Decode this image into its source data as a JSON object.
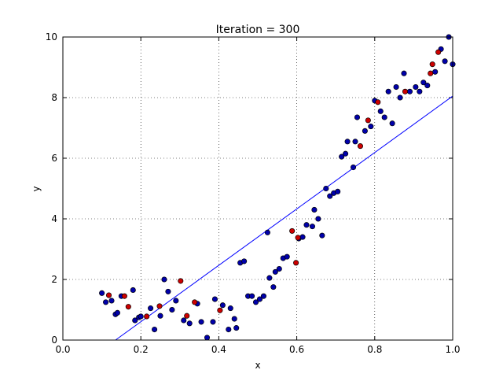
{
  "chart_data": {
    "type": "scatter",
    "title": "Iteration = 300",
    "xlabel": "x",
    "ylabel": "y",
    "xlim": [
      0.0,
      1.0
    ],
    "ylim": [
      0,
      10
    ],
    "x_ticks": [
      0.0,
      0.2,
      0.4,
      0.6,
      0.8,
      1.0
    ],
    "x_tick_labels": [
      "0.0",
      "0.2",
      "0.4",
      "0.6",
      "0.8",
      "1.0"
    ],
    "y_ticks": [
      0,
      2,
      4,
      6,
      8,
      10
    ],
    "y_tick_labels": [
      "0",
      "2",
      "4",
      "6",
      "8",
      "10"
    ],
    "grid": true,
    "colors": {
      "point_blue": "#0000aa",
      "point_red": "#cc0000",
      "fit_line": "#0000ff"
    },
    "series": [
      {
        "color": "blue",
        "points": [
          [
            0.1,
            1.55
          ],
          [
            0.11,
            1.25
          ],
          [
            0.125,
            1.3
          ],
          [
            0.135,
            0.85
          ],
          [
            0.14,
            0.9
          ],
          [
            0.15,
            1.45
          ],
          [
            0.18,
            1.65
          ],
          [
            0.185,
            0.65
          ],
          [
            0.195,
            0.75
          ],
          [
            0.2,
            0.78
          ],
          [
            0.225,
            1.05
          ],
          [
            0.235,
            0.35
          ],
          [
            0.25,
            0.8
          ],
          [
            0.26,
            2.0
          ],
          [
            0.27,
            1.6
          ],
          [
            0.28,
            1.0
          ],
          [
            0.29,
            1.3
          ],
          [
            0.31,
            0.65
          ],
          [
            0.325,
            0.55
          ],
          [
            0.345,
            1.2
          ],
          [
            0.355,
            0.6
          ],
          [
            0.37,
            0.08
          ],
          [
            0.385,
            0.6
          ],
          [
            0.39,
            1.35
          ],
          [
            0.41,
            1.15
          ],
          [
            0.425,
            0.35
          ],
          [
            0.43,
            1.05
          ],
          [
            0.44,
            0.7
          ],
          [
            0.445,
            0.4
          ],
          [
            0.455,
            2.55
          ],
          [
            0.465,
            2.6
          ],
          [
            0.475,
            1.45
          ],
          [
            0.485,
            1.45
          ],
          [
            0.495,
            1.25
          ],
          [
            0.505,
            1.35
          ],
          [
            0.515,
            1.45
          ],
          [
            0.525,
            3.55
          ],
          [
            0.53,
            2.05
          ],
          [
            0.54,
            1.75
          ],
          [
            0.545,
            2.25
          ],
          [
            0.555,
            2.35
          ],
          [
            0.565,
            2.7
          ],
          [
            0.575,
            2.75
          ],
          [
            0.605,
            3.35
          ],
          [
            0.615,
            3.4
          ],
          [
            0.625,
            3.8
          ],
          [
            0.64,
            3.75
          ],
          [
            0.645,
            4.3
          ],
          [
            0.655,
            4.0
          ],
          [
            0.665,
            3.45
          ],
          [
            0.675,
            5.0
          ],
          [
            0.685,
            4.75
          ],
          [
            0.695,
            4.85
          ],
          [
            0.705,
            4.9
          ],
          [
            0.715,
            6.05
          ],
          [
            0.725,
            6.15
          ],
          [
            0.73,
            6.55
          ],
          [
            0.745,
            5.7
          ],
          [
            0.75,
            6.55
          ],
          [
            0.755,
            7.35
          ],
          [
            0.775,
            6.9
          ],
          [
            0.79,
            7.05
          ],
          [
            0.8,
            7.9
          ],
          [
            0.815,
            7.55
          ],
          [
            0.825,
            7.35
          ],
          [
            0.835,
            8.2
          ],
          [
            0.845,
            7.15
          ],
          [
            0.855,
            8.35
          ],
          [
            0.865,
            8.0
          ],
          [
            0.875,
            8.8
          ],
          [
            0.89,
            8.2
          ],
          [
            0.905,
            8.35
          ],
          [
            0.915,
            8.2
          ],
          [
            0.925,
            8.5
          ],
          [
            0.935,
            8.4
          ],
          [
            0.955,
            8.85
          ],
          [
            0.97,
            9.6
          ],
          [
            0.98,
            9.2
          ],
          [
            0.99,
            10.0
          ],
          [
            1.0,
            9.1
          ]
        ]
      },
      {
        "color": "red",
        "points": [
          [
            0.118,
            1.48
          ],
          [
            0.158,
            1.45
          ],
          [
            0.168,
            1.1
          ],
          [
            0.215,
            0.78
          ],
          [
            0.248,
            1.12
          ],
          [
            0.302,
            1.95
          ],
          [
            0.318,
            0.8
          ],
          [
            0.338,
            1.25
          ],
          [
            0.403,
            0.98
          ],
          [
            0.588,
            3.6
          ],
          [
            0.598,
            2.55
          ],
          [
            0.603,
            3.38
          ],
          [
            0.763,
            6.4
          ],
          [
            0.783,
            7.25
          ],
          [
            0.808,
            7.85
          ],
          [
            0.878,
            8.2
          ],
          [
            0.943,
            8.8
          ],
          [
            0.948,
            9.1
          ],
          [
            0.963,
            9.5
          ]
        ]
      }
    ],
    "fit_line": {
      "x": [
        0.135,
        1.0
      ],
      "y": [
        0.0,
        8.05
      ]
    }
  }
}
